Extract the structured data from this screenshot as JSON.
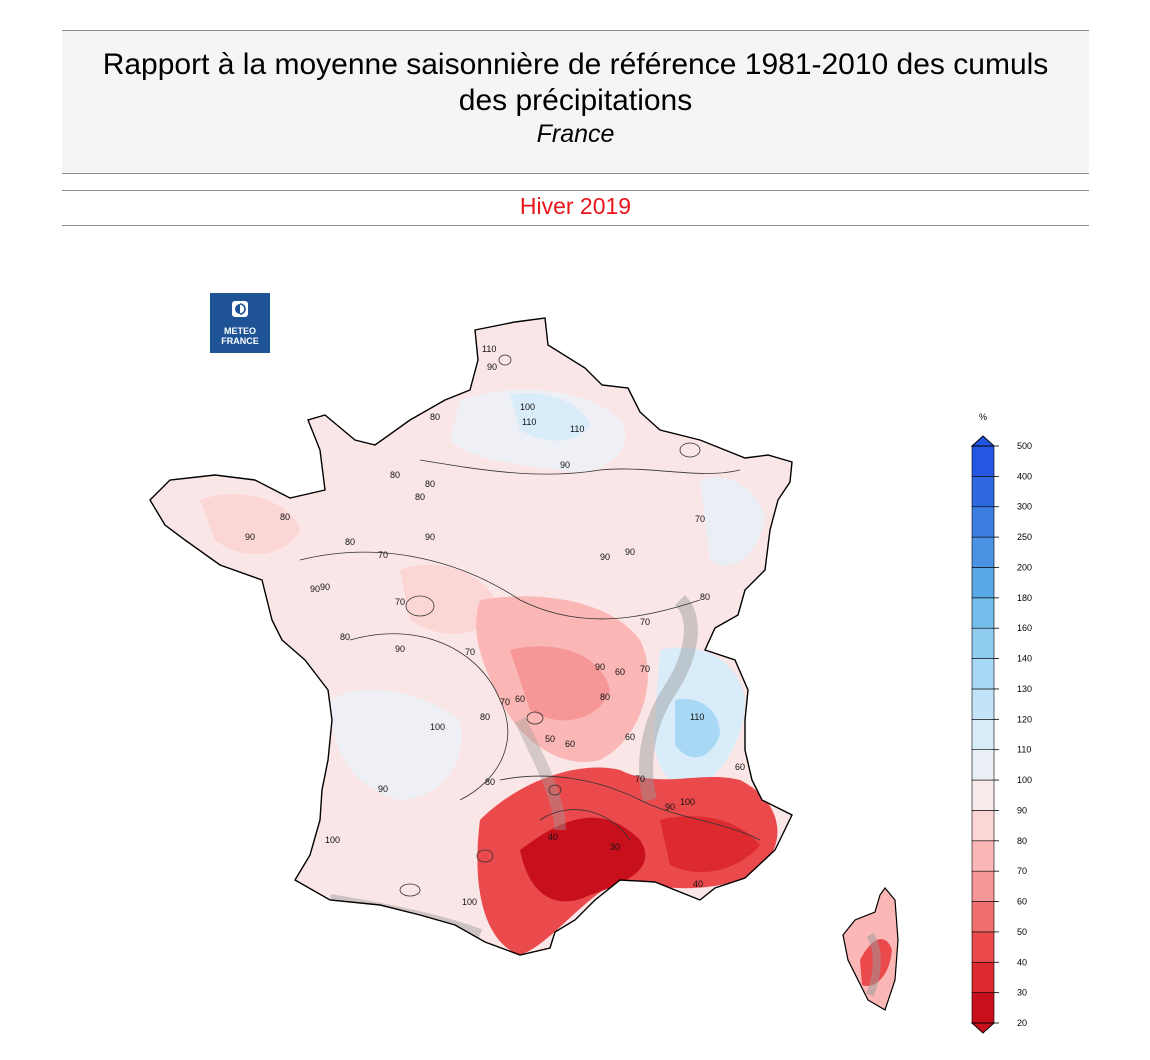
{
  "header": {
    "title_line1": "Rapport à la moyenne saisonnière de référence 1981-2010 des cumuls",
    "title_line2": "des précipitations",
    "region": "France",
    "season": "Hiver 2019"
  },
  "logo": {
    "line1": "METEO",
    "line2": "FRANCE",
    "icon": "meteo-france-logo-icon"
  },
  "legend": {
    "unit": "%",
    "levels": [
      20,
      30,
      40,
      50,
      60,
      70,
      80,
      90,
      100,
      110,
      120,
      130,
      140,
      160,
      180,
      200,
      250,
      300,
      400,
      500
    ],
    "colors": [
      "#c8101c",
      "#dc2a2f",
      "#ea4a4c",
      "#f26f6f",
      "#f79696",
      "#fab7b5",
      "#fcd6d4",
      "#f7eaea",
      "#eaeff5",
      "#d8ecfa",
      "#c3e4f8",
      "#a9d8f4",
      "#8fcdf0",
      "#73bdeb",
      "#5aa9e6",
      "#4a93e3",
      "#3c7de2",
      "#2f69e2",
      "#2456e4"
    ]
  },
  "map": {
    "contour_labels": [
      "110",
      "90",
      "100",
      "110",
      "110",
      "90",
      "80",
      "80",
      "80",
      "80",
      "80",
      "90",
      "80",
      "70",
      "90",
      "70",
      "70",
      "90",
      "80",
      "90",
      "90",
      "70",
      "90",
      "70",
      "80",
      "60",
      "70",
      "80",
      "90",
      "100",
      "110",
      "90",
      "100",
      "60",
      "70",
      "80",
      "60",
      "50",
      "60",
      "40",
      "30",
      "90",
      "80",
      "100",
      "40",
      "60",
      "90",
      "100",
      "70"
    ]
  }
}
